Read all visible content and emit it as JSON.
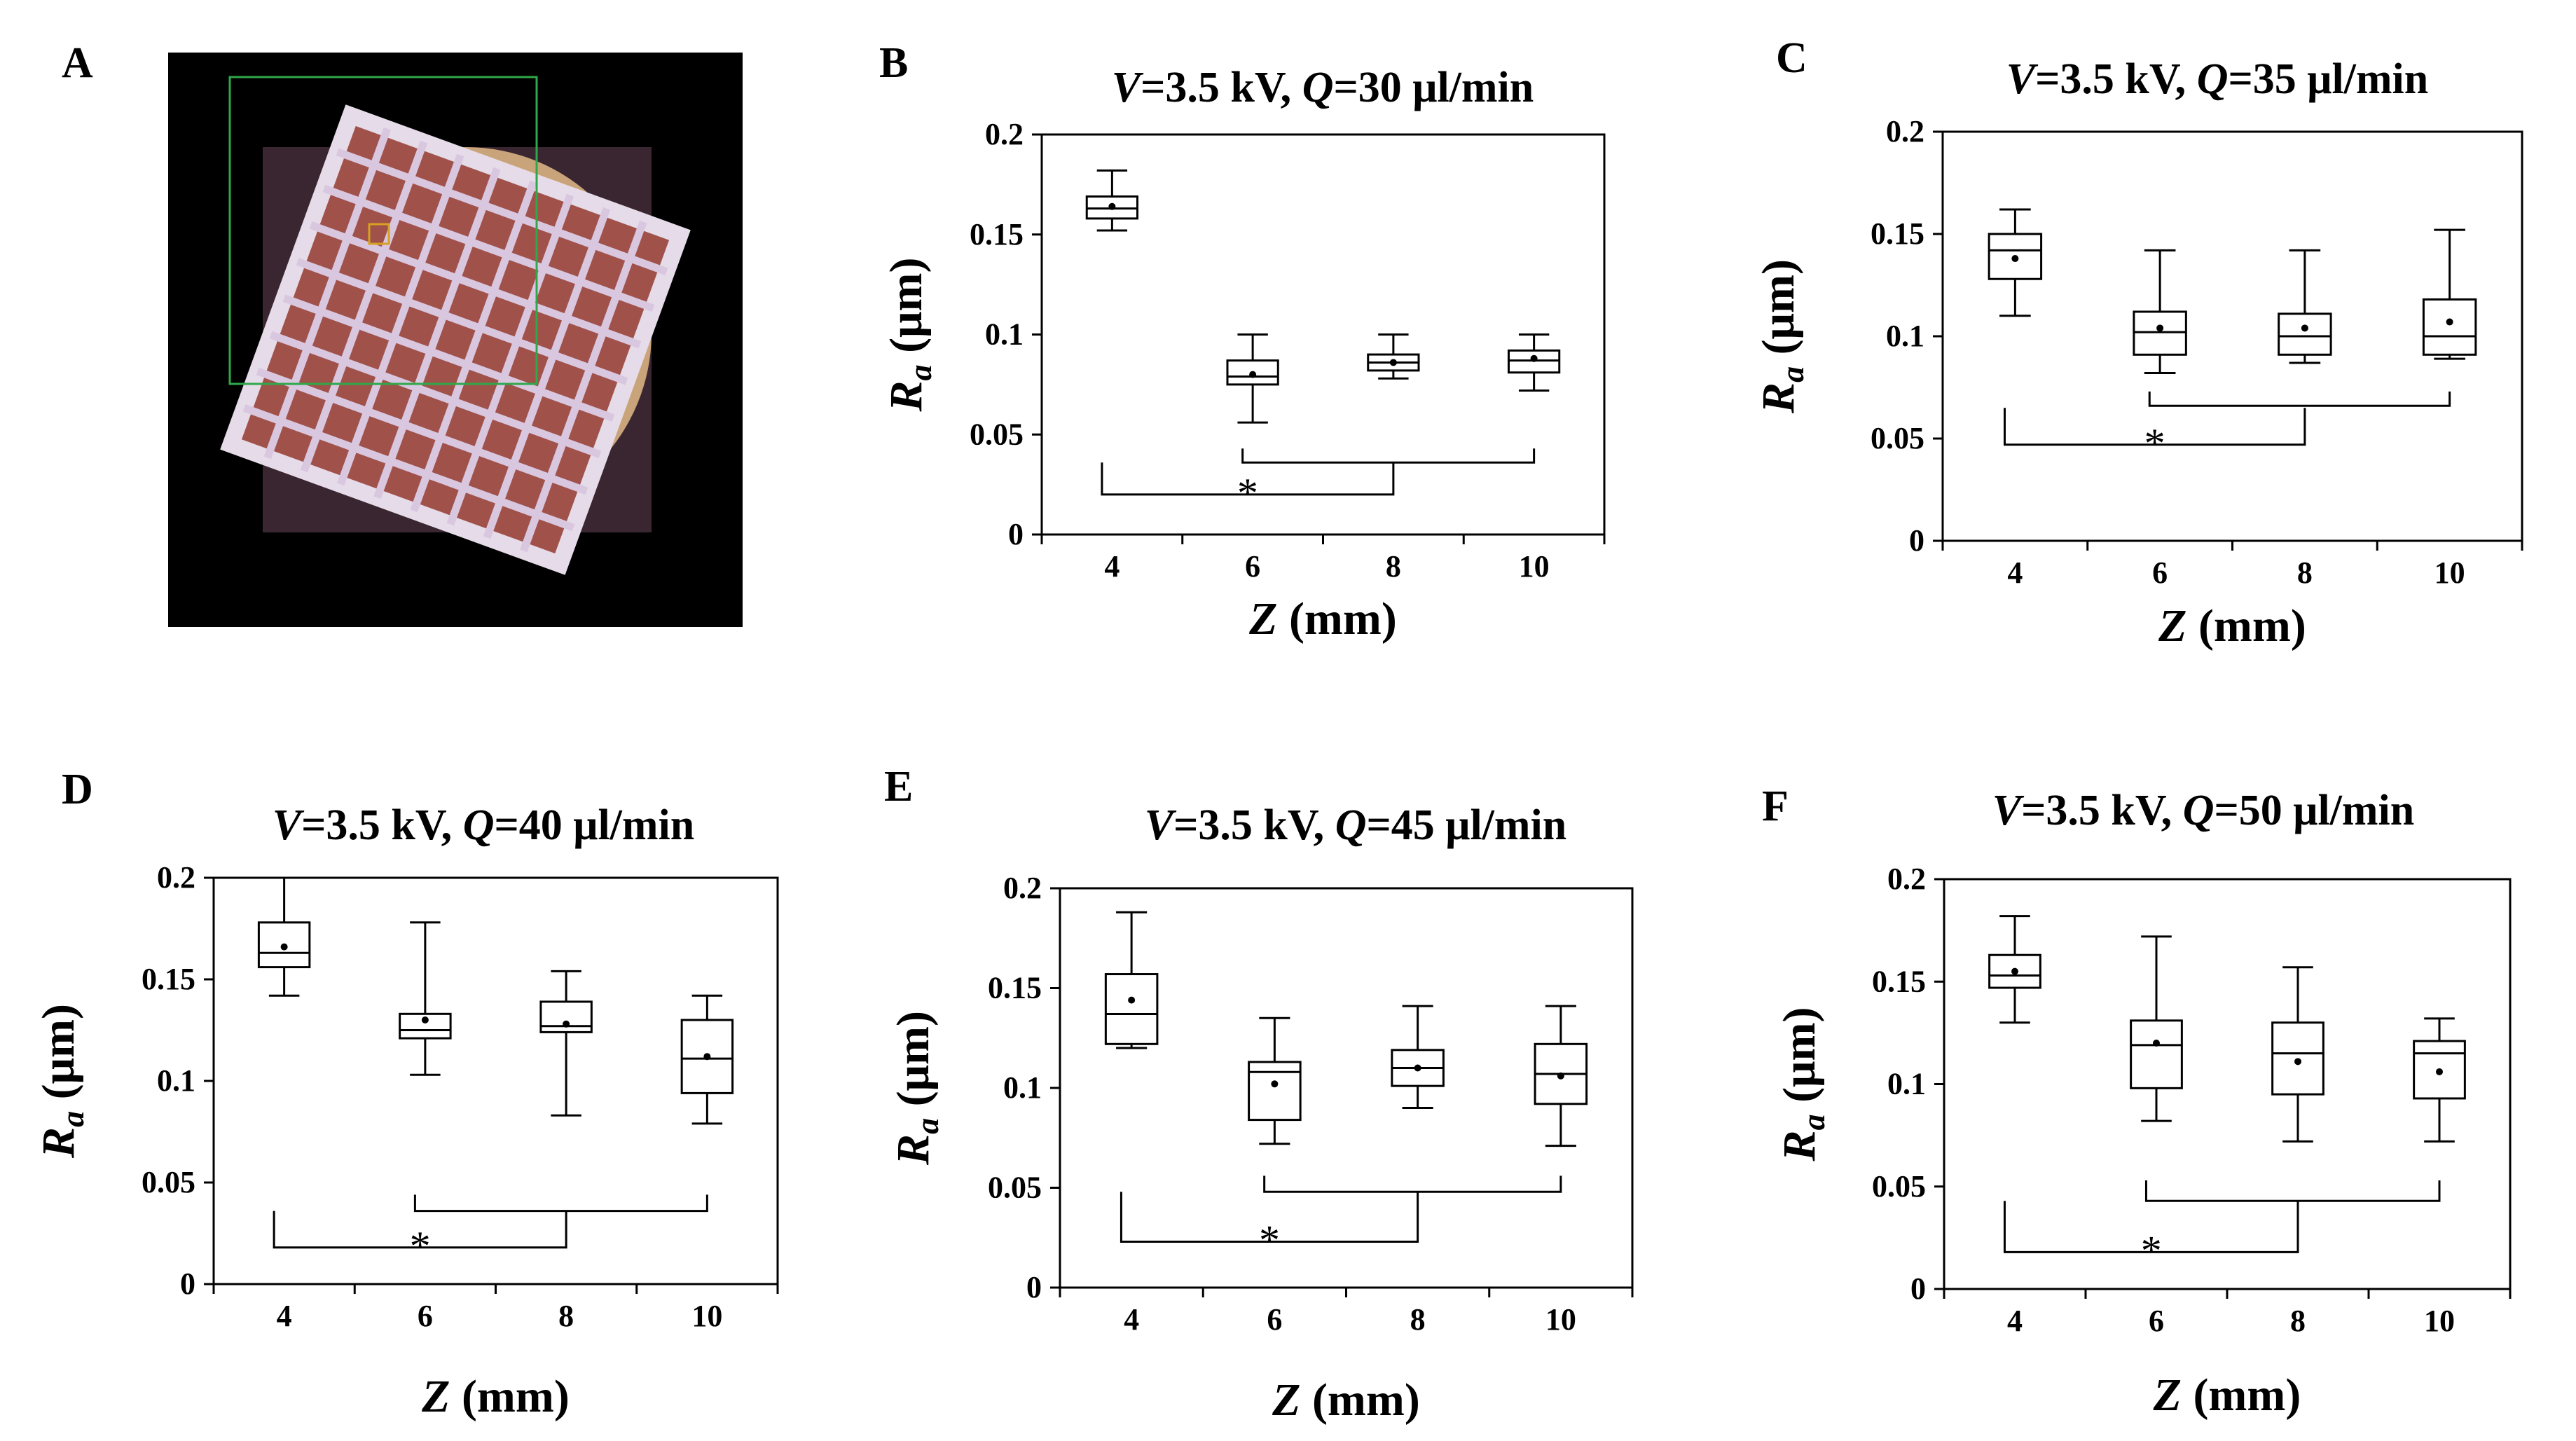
{
  "panels": [
    {
      "letter": "A"
    },
    {
      "letter": "B"
    },
    {
      "letter": "C"
    },
    {
      "letter": "D"
    },
    {
      "letter": "E"
    },
    {
      "letter": "F"
    }
  ],
  "photo": {
    "colors": {
      "background": "#000000",
      "frame": "#2fa84a",
      "grid": "#d9c7e0",
      "pore": "#a0524a",
      "disc": "#c9a47a",
      "small_box": "#d6a020"
    }
  },
  "chart_data": [
    {
      "type": "box",
      "panel": "B",
      "title_parts": [
        "V",
        "=3.5 kV, ",
        "Q",
        "=30 μl/min"
      ],
      "xlabel_parts": [
        "Z",
        " (mm)"
      ],
      "ylabel": {
        "symbol": "R",
        "subscript": "a",
        "unit": "(μm)"
      },
      "ylim": [
        0,
        0.2
      ],
      "yticks": [
        0,
        0.05,
        0.1,
        0.15,
        0.2
      ],
      "ytick_labels": [
        "0",
        "0.05",
        "0.1",
        "0.15",
        "0.2"
      ],
      "categories": [
        "4",
        "6",
        "8",
        "10"
      ],
      "boxes": [
        {
          "min": 0.152,
          "q1": 0.158,
          "median": 0.163,
          "q3": 0.169,
          "max": 0.182,
          "mean": 0.164
        },
        {
          "min": 0.056,
          "q1": 0.075,
          "median": 0.079,
          "q3": 0.087,
          "max": 0.1,
          "mean": 0.08
        },
        {
          "min": 0.078,
          "q1": 0.082,
          "median": 0.086,
          "q3": 0.09,
          "max": 0.1,
          "mean": 0.086
        },
        {
          "min": 0.072,
          "q1": 0.081,
          "median": 0.087,
          "q3": 0.092,
          "max": 0.1,
          "mean": 0.088
        }
      ],
      "brackets": [
        {
          "from": 0,
          "to": 2,
          "y": 0.02,
          "height": 0.016,
          "label": "*"
        },
        {
          "from": 1,
          "to": 3,
          "y": 0.036,
          "height": 0.007,
          "label": ""
        }
      ]
    },
    {
      "type": "box",
      "panel": "C",
      "title_parts": [
        "V",
        "=3.5 kV, ",
        "Q",
        "=35 μl/min"
      ],
      "xlabel_parts": [
        "Z",
        " (mm)"
      ],
      "ylabel": {
        "symbol": "R",
        "subscript": "a",
        "unit": "(μm)"
      },
      "ylim": [
        0,
        0.2
      ],
      "yticks": [
        0,
        0.05,
        0.1,
        0.15,
        0.2
      ],
      "ytick_labels": [
        "0",
        "0.05",
        "0.1",
        "0.15",
        "0.2"
      ],
      "categories": [
        "4",
        "6",
        "8",
        "10"
      ],
      "boxes": [
        {
          "min": 0.11,
          "q1": 0.128,
          "median": 0.142,
          "q3": 0.15,
          "max": 0.162,
          "mean": 0.138
        },
        {
          "min": 0.082,
          "q1": 0.091,
          "median": 0.102,
          "q3": 0.112,
          "max": 0.142,
          "mean": 0.104
        },
        {
          "min": 0.087,
          "q1": 0.091,
          "median": 0.1,
          "q3": 0.111,
          "max": 0.142,
          "mean": 0.104
        },
        {
          "min": 0.089,
          "q1": 0.091,
          "median": 0.1,
          "q3": 0.118,
          "max": 0.152,
          "mean": 0.107
        }
      ],
      "brackets": [
        {
          "from": 0,
          "to": 2,
          "y": 0.047,
          "height": 0.018,
          "label": "*"
        },
        {
          "from": 1,
          "to": 3,
          "y": 0.066,
          "height": 0.007,
          "label": ""
        }
      ]
    },
    {
      "type": "box",
      "panel": "D",
      "title_parts": [
        "V",
        "=3.5 kV, ",
        "Q",
        "=40 μl/min"
      ],
      "xlabel_parts": [
        "Z",
        " (mm)"
      ],
      "ylabel": {
        "symbol": "R",
        "subscript": "a",
        "unit": "(μm)"
      },
      "ylim": [
        0,
        0.2
      ],
      "yticks": [
        0,
        0.05,
        0.1,
        0.15,
        0.2
      ],
      "ytick_labels": [
        "0",
        "0.05",
        "0.1",
        "0.15",
        "0.2"
      ],
      "categories": [
        "4",
        "6",
        "8",
        "10"
      ],
      "boxes": [
        {
          "min": 0.142,
          "q1": 0.156,
          "median": 0.163,
          "q3": 0.178,
          "max": 0.2,
          "mean": 0.166
        },
        {
          "min": 0.103,
          "q1": 0.121,
          "median": 0.125,
          "q3": 0.133,
          "max": 0.178,
          "mean": 0.13
        },
        {
          "min": 0.083,
          "q1": 0.124,
          "median": 0.127,
          "q3": 0.139,
          "max": 0.154,
          "mean": 0.128
        },
        {
          "min": 0.079,
          "q1": 0.094,
          "median": 0.111,
          "q3": 0.13,
          "max": 0.142,
          "mean": 0.112
        }
      ],
      "brackets": [
        {
          "from": 0,
          "to": 2,
          "y": 0.018,
          "height": 0.018,
          "label": "*"
        },
        {
          "from": 1,
          "to": 3,
          "y": 0.036,
          "height": 0.008,
          "label": ""
        }
      ]
    },
    {
      "type": "box",
      "panel": "E",
      "title_parts": [
        "V",
        "=3.5 kV, ",
        "Q",
        "=45 μl/min"
      ],
      "xlabel_parts": [
        "Z",
        " (mm)"
      ],
      "ylabel": {
        "symbol": "R",
        "subscript": "a",
        "unit": "(μm)"
      },
      "ylim": [
        0,
        0.2
      ],
      "yticks": [
        0,
        0.05,
        0.1,
        0.15,
        0.2
      ],
      "ytick_labels": [
        "0",
        "0.05",
        "0.1",
        "0.15",
        "0.2"
      ],
      "categories": [
        "4",
        "6",
        "8",
        "10"
      ],
      "boxes": [
        {
          "min": 0.12,
          "q1": 0.122,
          "median": 0.137,
          "q3": 0.157,
          "max": 0.188,
          "mean": 0.144
        },
        {
          "min": 0.072,
          "q1": 0.084,
          "median": 0.108,
          "q3": 0.113,
          "max": 0.135,
          "mean": 0.102
        },
        {
          "min": 0.09,
          "q1": 0.101,
          "median": 0.11,
          "q3": 0.119,
          "max": 0.141,
          "mean": 0.11
        },
        {
          "min": 0.071,
          "q1": 0.092,
          "median": 0.107,
          "q3": 0.122,
          "max": 0.141,
          "mean": 0.106
        }
      ],
      "brackets": [
        {
          "from": 0,
          "to": 2,
          "y": 0.023,
          "height": 0.025,
          "label": "*"
        },
        {
          "from": 1,
          "to": 3,
          "y": 0.048,
          "height": 0.008,
          "label": ""
        }
      ]
    },
    {
      "type": "box",
      "panel": "F",
      "title_parts": [
        "V",
        "=3.5 kV, ",
        "Q",
        "=50 μl/min"
      ],
      "xlabel_parts": [
        "Z",
        " (mm)"
      ],
      "ylabel": {
        "symbol": "R",
        "subscript": "a",
        "unit": "(μm)"
      },
      "ylim": [
        0,
        0.2
      ],
      "yticks": [
        0,
        0.05,
        0.1,
        0.15,
        0.2
      ],
      "ytick_labels": [
        "0",
        "0.05",
        "0.1",
        "0.15",
        "0.2"
      ],
      "categories": [
        "4",
        "6",
        "8",
        "10"
      ],
      "boxes": [
        {
          "min": 0.13,
          "q1": 0.147,
          "median": 0.153,
          "q3": 0.163,
          "max": 0.182,
          "mean": 0.155
        },
        {
          "min": 0.082,
          "q1": 0.098,
          "median": 0.119,
          "q3": 0.131,
          "max": 0.172,
          "mean": 0.12
        },
        {
          "min": 0.072,
          "q1": 0.095,
          "median": 0.115,
          "q3": 0.13,
          "max": 0.157,
          "mean": 0.111
        },
        {
          "min": 0.072,
          "q1": 0.093,
          "median": 0.115,
          "q3": 0.121,
          "max": 0.132,
          "mean": 0.106
        }
      ],
      "brackets": [
        {
          "from": 0,
          "to": 2,
          "y": 0.018,
          "height": 0.025,
          "label": "*"
        },
        {
          "from": 1,
          "to": 3,
          "y": 0.043,
          "height": 0.01,
          "label": ""
        }
      ]
    }
  ]
}
